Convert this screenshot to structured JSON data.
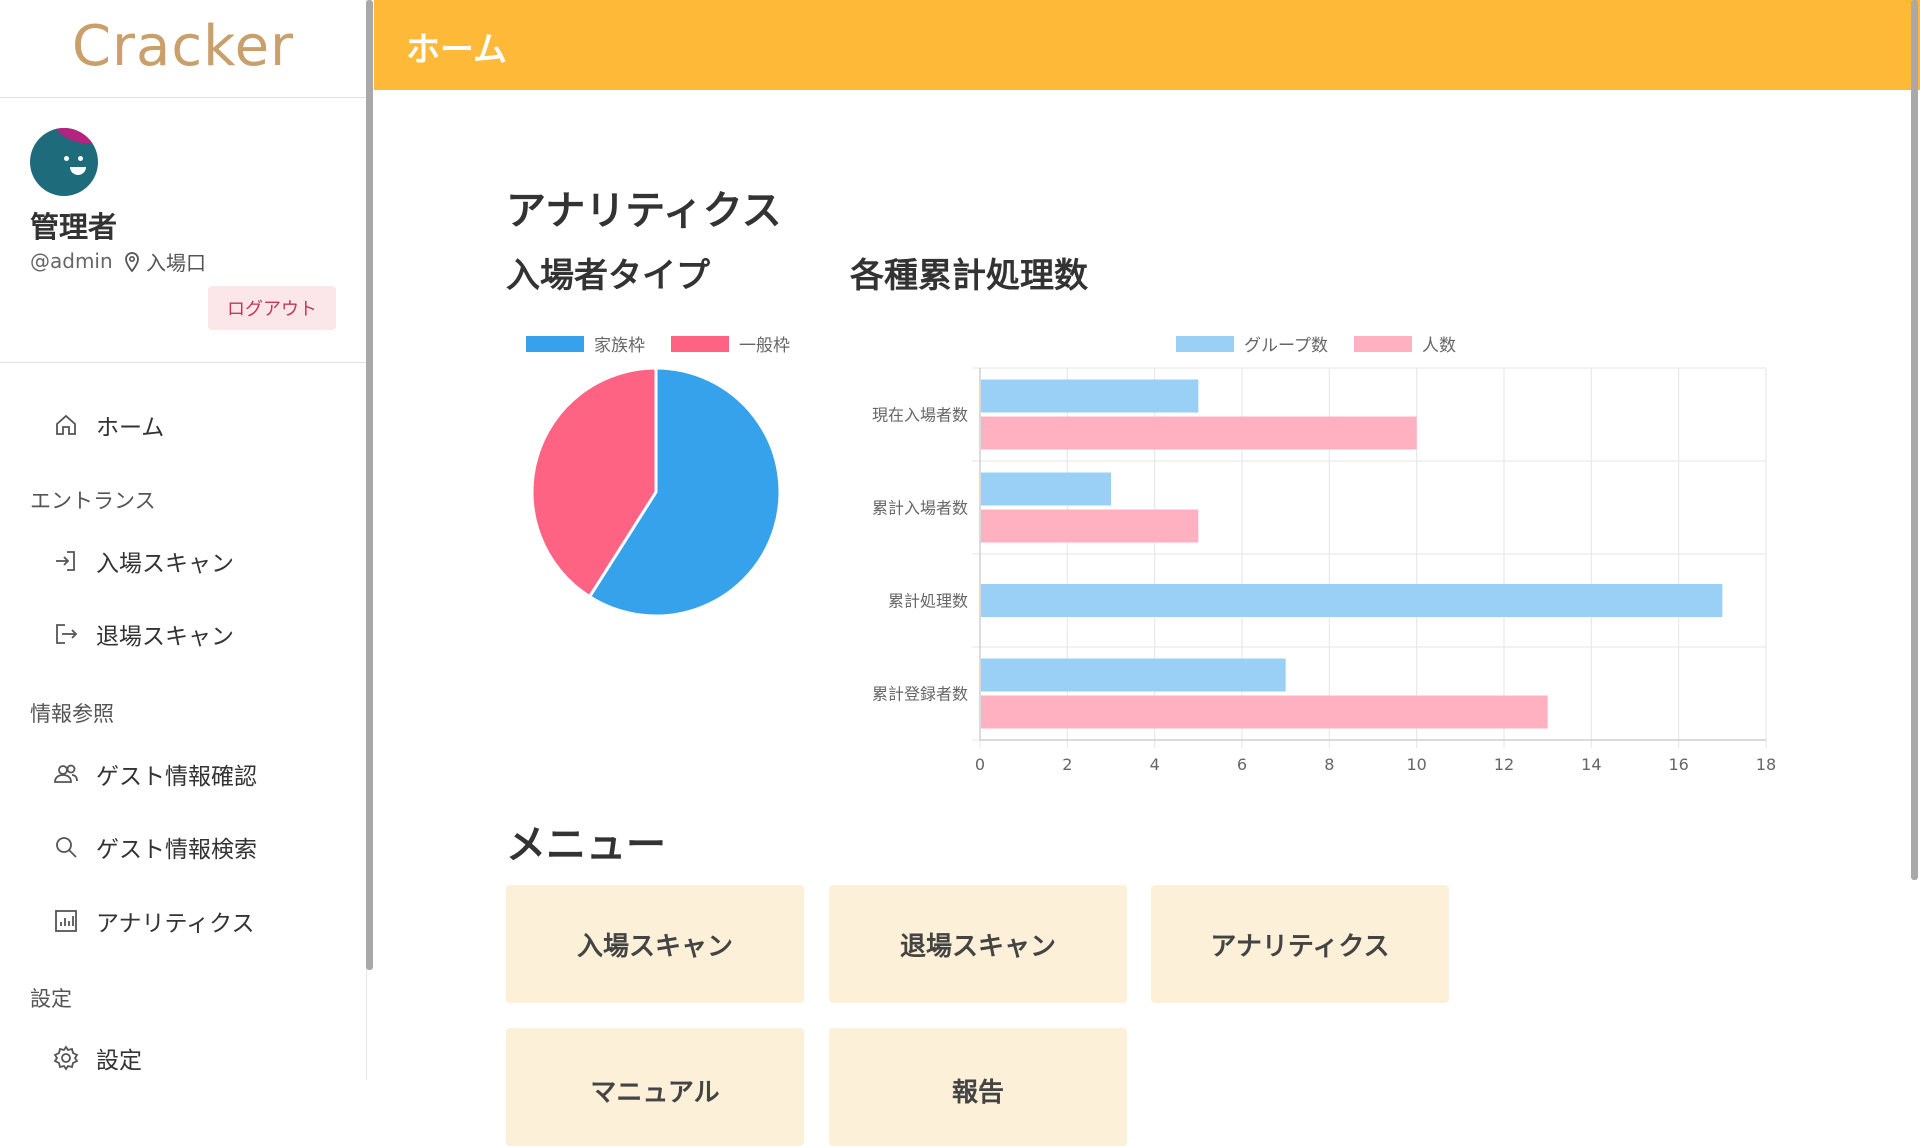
{
  "app": {
    "logo": "Cracker"
  },
  "user": {
    "name": "管理者",
    "handle": "@admin",
    "location": "入場口",
    "logout_label": "ログアウト"
  },
  "sidebar": {
    "home": {
      "label": "ホーム",
      "icon": "home-icon"
    },
    "sections": [
      {
        "title": "エントランス",
        "items": [
          {
            "label": "入場スキャン",
            "icon": "login-icon"
          },
          {
            "label": "退場スキャン",
            "icon": "logout-icon"
          }
        ]
      },
      {
        "title": "情報参照",
        "items": [
          {
            "label": "ゲスト情報確認",
            "icon": "people-icon"
          },
          {
            "label": "ゲスト情報検索",
            "icon": "search-icon"
          },
          {
            "label": "アナリティクス",
            "icon": "bar-chart-icon"
          }
        ]
      },
      {
        "title": "設定",
        "items": [
          {
            "label": "設定",
            "icon": "gear-icon"
          }
        ]
      }
    ]
  },
  "header": {
    "title": "ホーム"
  },
  "analytics": {
    "title": "アナリティクス",
    "pie_title": "入場者タイプ",
    "bar_title": "各種累計処理数"
  },
  "menu": {
    "title": "メニュー",
    "cards": [
      "入場スキャン",
      "退場スキャン",
      "アナリティクス",
      "マニュアル",
      "報告"
    ]
  },
  "colors": {
    "header": "#ffb938",
    "accent_blue": "#36a2eb",
    "accent_pink": "#ff6384",
    "card_bg": "#fdf0d8"
  },
  "chart_data": [
    {
      "type": "pie",
      "categories": [
        "家族枠",
        "一般枠"
      ],
      "values": [
        59,
        41
      ],
      "colors": [
        "#36a2eb",
        "#ff6384"
      ],
      "legend": "top"
    },
    {
      "type": "bar",
      "orientation": "horizontal",
      "categories": [
        "現在入場者数",
        "累計入場者数",
        "累計処理数",
        "累計登録者数"
      ],
      "series": [
        {
          "name": "グループ数",
          "values": [
            5,
            3,
            17,
            7
          ],
          "color": "#9ad0f5"
        },
        {
          "name": "人数",
          "values": [
            10,
            5,
            null,
            13
          ],
          "color": "#ffb1c1"
        }
      ],
      "xlim": [
        0,
        18
      ],
      "xticks": [
        "0",
        "2",
        "4",
        "6",
        "8",
        "10",
        "12",
        "14",
        "16",
        "18"
      ],
      "grid": true,
      "legend": "top"
    }
  ]
}
